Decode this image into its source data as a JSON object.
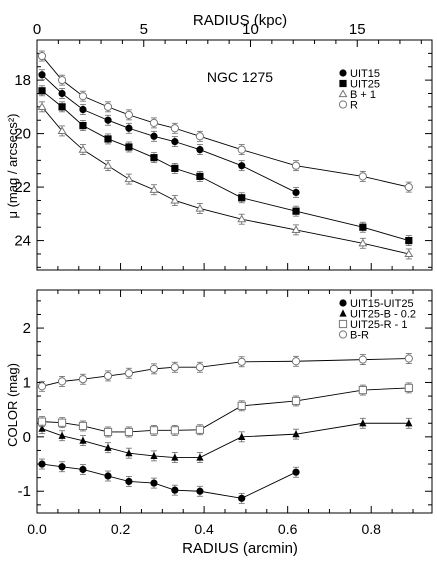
{
  "chart_data": [
    {
      "type": "line",
      "top_axis_label": "RADIUS (kpc)",
      "top_axis_ticks": [
        0,
        5,
        10,
        15
      ],
      "title": "NGC 1275",
      "xlabel": "RADIUS (arcmin)",
      "ylabel": "μ (mag / arcsecs²)",
      "ylim": [
        25,
        16.5
      ],
      "y_ticks": [
        18,
        20,
        22,
        24
      ],
      "legend_position": "top-right",
      "series": [
        {
          "name": "UIT15",
          "marker": "filled-circle",
          "x": [
            0.012,
            0.06,
            0.11,
            0.17,
            0.22,
            0.28,
            0.33,
            0.39,
            0.49,
            0.62
          ],
          "y": [
            17.8,
            18.5,
            19.1,
            19.5,
            19.8,
            20.1,
            20.3,
            20.6,
            21.2,
            22.2
          ]
        },
        {
          "name": "UIT25",
          "marker": "filled-square",
          "x": [
            0.012,
            0.06,
            0.11,
            0.17,
            0.22,
            0.28,
            0.33,
            0.39,
            0.49,
            0.62,
            0.78,
            0.89
          ],
          "y": [
            18.4,
            19.0,
            19.7,
            20.2,
            20.5,
            20.9,
            21.3,
            21.6,
            22.4,
            22.9,
            23.5,
            24.0
          ]
        },
        {
          "name": "B + 1",
          "marker": "open-triangle",
          "x": [
            0.012,
            0.06,
            0.11,
            0.17,
            0.22,
            0.28,
            0.33,
            0.39,
            0.49,
            0.62,
            0.78,
            0.89
          ],
          "y": [
            19.0,
            19.9,
            20.6,
            21.2,
            21.7,
            22.1,
            22.5,
            22.8,
            23.2,
            23.6,
            24.1,
            24.5
          ]
        },
        {
          "name": "R",
          "marker": "open-circle",
          "x": [
            0.012,
            0.06,
            0.11,
            0.17,
            0.22,
            0.28,
            0.33,
            0.39,
            0.49,
            0.62,
            0.78,
            0.89
          ],
          "y": [
            17.1,
            18.0,
            18.6,
            19.0,
            19.3,
            19.6,
            19.8,
            20.1,
            20.6,
            21.2,
            21.6,
            22.0
          ]
        }
      ]
    },
    {
      "type": "line",
      "xlabel": "RADIUS (arcmin)",
      "ylabel": "COLOR (mag)",
      "xlim": [
        0,
        0.9
      ],
      "x_ticks": [
        0.0,
        0.2,
        0.4,
        0.6,
        0.8
      ],
      "ylim": [
        -1.4,
        2.7
      ],
      "y_ticks": [
        -1,
        0,
        1,
        2
      ],
      "legend_position": "top-right",
      "series": [
        {
          "name": "UIT15-UIT25",
          "marker": "filled-circle",
          "x": [
            0.012,
            0.06,
            0.11,
            0.17,
            0.22,
            0.28,
            0.33,
            0.39,
            0.49,
            0.62
          ],
          "y": [
            -0.5,
            -0.55,
            -0.6,
            -0.72,
            -0.82,
            -0.85,
            -0.98,
            -1.0,
            -1.13,
            -0.65
          ]
        },
        {
          "name": "UIT25-B - 0.2",
          "marker": "filled-triangle",
          "x": [
            0.012,
            0.06,
            0.11,
            0.17,
            0.22,
            0.28,
            0.33,
            0.39,
            0.49,
            0.62,
            0.78,
            0.89
          ],
          "y": [
            0.15,
            0.02,
            -0.07,
            -0.2,
            -0.3,
            -0.35,
            -0.38,
            -0.38,
            0.0,
            0.05,
            0.25,
            0.25
          ]
        },
        {
          "name": "UIT25-R - 1",
          "marker": "open-square",
          "x": [
            0.012,
            0.06,
            0.11,
            0.17,
            0.22,
            0.28,
            0.33,
            0.39,
            0.49,
            0.62,
            0.78,
            0.89
          ],
          "y": [
            0.28,
            0.26,
            0.2,
            0.09,
            0.09,
            0.12,
            0.12,
            0.13,
            0.57,
            0.66,
            0.86,
            0.9
          ]
        },
        {
          "name": "B-R",
          "marker": "open-circle",
          "x": [
            0.012,
            0.06,
            0.11,
            0.17,
            0.22,
            0.28,
            0.33,
            0.39,
            0.49,
            0.62,
            0.78,
            0.89
          ],
          "y": [
            0.93,
            1.02,
            1.06,
            1.12,
            1.17,
            1.25,
            1.28,
            1.28,
            1.38,
            1.39,
            1.42,
            1.44
          ]
        }
      ]
    }
  ]
}
